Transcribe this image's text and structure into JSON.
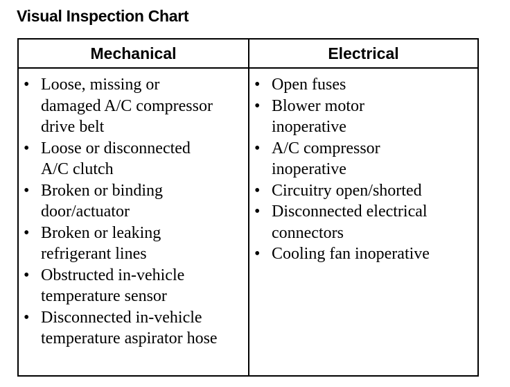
{
  "title": "Visual Inspection Chart",
  "headers": [
    "Mechanical",
    "Electrical"
  ],
  "mechanical": [
    "Loose, missing or damaged A/C compressor drive belt",
    "Loose or disconnected A/C clutch",
    "Broken or binding door/actuator",
    "Broken or leaking refrigerant lines",
    "Obstructed in-vehicle temperature sensor",
    "Disconnected in-vehicle temperature aspirator hose"
  ],
  "electrical": [
    "Open fuses",
    "Blower motor inoperative",
    "A/C compressor inoperative",
    "Circuitry open/shorted",
    "Disconnected electrical connectors",
    "Cooling fan inoperative"
  ]
}
